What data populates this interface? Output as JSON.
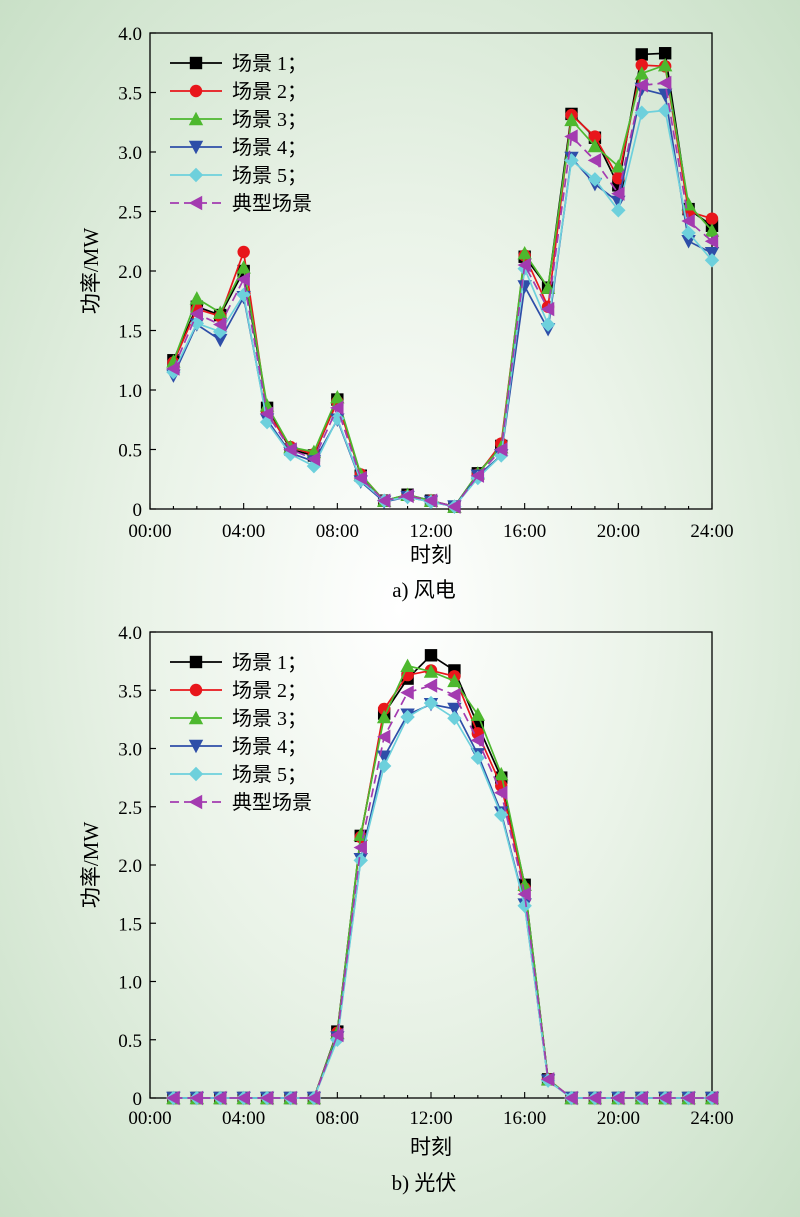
{
  "chart_data": [
    {
      "type": "line",
      "caption": "a) 风电",
      "xlabel": "时刻",
      "ylabel": "功率/MW",
      "x_ticks": [
        "00:00",
        "04:00",
        "08:00",
        "12:00",
        "16:00",
        "20:00",
        "24:00"
      ],
      "y_ticks": [
        "0",
        "0.5",
        "1.0",
        "1.5",
        "2.0",
        "2.5",
        "3.0",
        "3.5",
        "4.0"
      ],
      "xlim": [
        0,
        24
      ],
      "ylim": [
        0,
        4
      ],
      "legend_position": "top-left",
      "x": [
        1,
        2,
        3,
        4,
        5,
        6,
        7,
        8,
        9,
        10,
        11,
        12,
        13,
        14,
        15,
        16,
        17,
        18,
        19,
        20,
        21,
        22,
        23,
        24
      ],
      "series": [
        {
          "name": "场景 1；",
          "color": "#000000",
          "marker": "square",
          "dash": false,
          "values": [
            1.25,
            1.7,
            1.63,
            2.0,
            0.85,
            0.5,
            0.45,
            0.92,
            0.28,
            0.07,
            0.12,
            0.07,
            0.02,
            0.3,
            0.53,
            2.12,
            1.86,
            3.32,
            3.12,
            2.72,
            3.82,
            3.83,
            2.52,
            2.38
          ]
        },
        {
          "name": "场景 2；",
          "color": "#e8161b",
          "marker": "circle",
          "dash": false,
          "values": [
            1.23,
            1.68,
            1.62,
            2.16,
            0.82,
            0.52,
            0.46,
            0.9,
            0.29,
            0.07,
            0.11,
            0.07,
            0.02,
            0.29,
            0.55,
            2.13,
            1.7,
            3.31,
            3.13,
            2.78,
            3.73,
            3.72,
            2.5,
            2.44
          ]
        },
        {
          "name": "场景 3；",
          "color": "#4db82e",
          "marker": "triangle-up",
          "dash": false,
          "values": [
            1.24,
            1.77,
            1.65,
            2.03,
            0.87,
            0.52,
            0.48,
            0.94,
            0.29,
            0.07,
            0.12,
            0.07,
            0.02,
            0.3,
            0.52,
            2.15,
            1.86,
            3.27,
            3.05,
            2.88,
            3.66,
            3.73,
            2.56,
            2.34
          ]
        },
        {
          "name": "场景 4；",
          "color": "#2e4ea8",
          "marker": "triangle-down",
          "dash": false,
          "values": [
            1.12,
            1.55,
            1.42,
            1.78,
            0.75,
            0.47,
            0.4,
            0.75,
            0.23,
            0.06,
            0.1,
            0.06,
            0.02,
            0.28,
            0.45,
            1.87,
            1.51,
            2.95,
            2.73,
            2.58,
            3.53,
            3.48,
            2.25,
            2.15
          ]
        },
        {
          "name": "场景 5；",
          "color": "#6dd0dc",
          "marker": "diamond",
          "dash": false,
          "values": [
            1.15,
            1.56,
            1.49,
            1.8,
            0.73,
            0.46,
            0.36,
            0.76,
            0.24,
            0.07,
            0.1,
            0.06,
            0.02,
            0.26,
            0.45,
            2.02,
            1.55,
            2.93,
            2.77,
            2.51,
            3.33,
            3.35,
            2.32,
            2.09
          ]
        },
        {
          "name": "典型场景",
          "color": "#a33bb0",
          "marker": "triangle-left",
          "dash": true,
          "values": [
            1.18,
            1.64,
            1.55,
            1.93,
            0.8,
            0.5,
            0.42,
            0.85,
            0.26,
            0.07,
            0.11,
            0.07,
            0.02,
            0.28,
            0.5,
            2.05,
            1.68,
            3.13,
            2.93,
            2.65,
            3.56,
            3.58,
            2.42,
            2.25
          ]
        }
      ]
    },
    {
      "type": "line",
      "caption": "b) 光伏",
      "xlabel": "时刻",
      "ylabel": "功率/MW",
      "x_ticks": [
        "00:00",
        "04:00",
        "08:00",
        "12:00",
        "16:00",
        "20:00",
        "24:00"
      ],
      "y_ticks": [
        "0",
        "0.5",
        "1.0",
        "1.5",
        "2.0",
        "2.5",
        "3.0",
        "3.5",
        "4.0"
      ],
      "xlim": [
        0,
        24
      ],
      "ylim": [
        0,
        4
      ],
      "legend_position": "top-left",
      "x": [
        1,
        2,
        3,
        4,
        5,
        6,
        7,
        8,
        9,
        10,
        11,
        12,
        13,
        14,
        15,
        16,
        17,
        18,
        19,
        20,
        21,
        22,
        23,
        24
      ],
      "series": [
        {
          "name": "场景 1；",
          "color": "#000000",
          "marker": "square",
          "dash": false,
          "values": [
            0,
            0,
            0,
            0,
            0,
            0,
            0,
            0.57,
            2.25,
            3.3,
            3.6,
            3.8,
            3.67,
            3.2,
            2.75,
            1.83,
            0.16,
            0,
            0,
            0,
            0,
            0,
            0,
            0
          ]
        },
        {
          "name": "场景 2；",
          "color": "#e8161b",
          "marker": "circle",
          "dash": false,
          "values": [
            0,
            0,
            0,
            0,
            0,
            0,
            0,
            0.56,
            2.24,
            3.34,
            3.63,
            3.67,
            3.62,
            3.13,
            2.68,
            1.8,
            0.16,
            0,
            0,
            0,
            0,
            0,
            0,
            0
          ]
        },
        {
          "name": "场景 3；",
          "color": "#4db82e",
          "marker": "triangle-up",
          "dash": false,
          "values": [
            0,
            0,
            0,
            0,
            0,
            0,
            0,
            0.56,
            2.26,
            3.27,
            3.71,
            3.66,
            3.58,
            3.29,
            2.78,
            1.83,
            0.16,
            0,
            0,
            0,
            0,
            0,
            0,
            0
          ]
        },
        {
          "name": "场景 4；",
          "color": "#2e4ea8",
          "marker": "triangle-down",
          "dash": false,
          "values": [
            0,
            0,
            0,
            0,
            0,
            0,
            0,
            0.52,
            2.05,
            2.93,
            3.29,
            3.38,
            3.34,
            2.95,
            2.45,
            1.66,
            0.15,
            0,
            0,
            0,
            0,
            0,
            0,
            0
          ]
        },
        {
          "name": "场景 5；",
          "color": "#6dd0dc",
          "marker": "diamond",
          "dash": false,
          "values": [
            0,
            0,
            0,
            0,
            0,
            0,
            0,
            0.5,
            2.04,
            2.85,
            3.27,
            3.39,
            3.26,
            2.92,
            2.43,
            1.65,
            0.15,
            0,
            0,
            0,
            0,
            0,
            0,
            0
          ]
        },
        {
          "name": "典型场景",
          "color": "#a33bb0",
          "marker": "triangle-left",
          "dash": true,
          "values": [
            0,
            0,
            0,
            0,
            0,
            0,
            0,
            0.54,
            2.15,
            3.1,
            3.48,
            3.54,
            3.46,
            3.07,
            2.62,
            1.75,
            0.16,
            0,
            0,
            0,
            0,
            0,
            0,
            0
          ]
        }
      ]
    }
  ]
}
